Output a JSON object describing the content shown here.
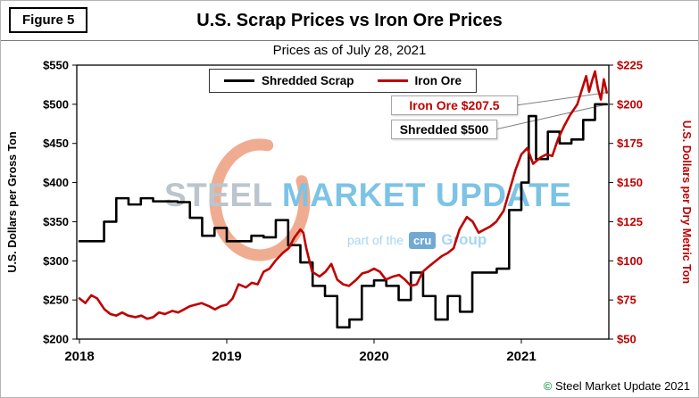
{
  "figure_label": "Figure 5",
  "watermark": {
    "steel": "STEEL",
    "market_update": "MARKET UPDATE",
    "part_of": "part of the",
    "cru": "cru",
    "group": "Group"
  },
  "footer": {
    "copyright_mark": "©",
    "copyright_text": "Steel Market Update 2021"
  },
  "chart_data": {
    "type": "line",
    "title": "U.S. Scrap Prices vs Iron Ore Prices",
    "subtitle": "Prices as of July 28, 2021",
    "grid": false,
    "x_axis": {
      "tick_labels": [
        "2018",
        "2019",
        "2020",
        "2021"
      ],
      "tick_values": [
        2018,
        2019,
        2020,
        2021
      ],
      "range": [
        2018,
        2021.62
      ]
    },
    "y_left": {
      "label": "U.S. Dollars per Gross Ton",
      "color": "#000000",
      "range": [
        200,
        550
      ],
      "tick_values": [
        200,
        250,
        300,
        350,
        400,
        450,
        500,
        550
      ],
      "tick_labels": [
        "$200",
        "$250",
        "$300",
        "$350",
        "$400",
        "$450",
        "$500",
        "$550"
      ]
    },
    "y_right": {
      "label": "U.S. Dollars per Dry Metric Ton",
      "color": "#C00000",
      "range": [
        50,
        225
      ],
      "tick_values": [
        50,
        75,
        100,
        125,
        150,
        175,
        200,
        225
      ],
      "tick_labels": [
        "$50",
        "$75",
        "$100",
        "$125",
        "$150",
        "$175",
        "$200",
        "$225"
      ]
    },
    "legend": {
      "position": "top-center",
      "items": [
        {
          "label": "Shredded Scrap",
          "color": "#000000"
        },
        {
          "label": "Iron Ore",
          "color": "#C00000"
        }
      ]
    },
    "annotations": [
      {
        "text": "Iron Ore $207.5",
        "series": "Iron Ore",
        "value": 207.5,
        "color": "#C00000"
      },
      {
        "text": "Shredded $500",
        "series": "Shredded Scrap",
        "value": 500,
        "color": "#000000"
      }
    ],
    "series": [
      {
        "name": "Shredded Scrap",
        "axis": "left",
        "units": "USD per gross ton",
        "color": "#000000",
        "style": "step",
        "x": [
          2018.0,
          2018.083,
          2018.167,
          2018.25,
          2018.333,
          2018.417,
          2018.5,
          2018.583,
          2018.667,
          2018.75,
          2018.833,
          2018.917,
          2019.0,
          2019.083,
          2019.167,
          2019.25,
          2019.333,
          2019.417,
          2019.5,
          2019.583,
          2019.667,
          2019.75,
          2019.833,
          2019.917,
          2020.0,
          2020.083,
          2020.167,
          2020.25,
          2020.333,
          2020.417,
          2020.5,
          2020.583,
          2020.667,
          2020.75,
          2020.833,
          2020.917,
          2021.0,
          2021.05,
          2021.1,
          2021.18,
          2021.26,
          2021.34,
          2021.42,
          2021.5,
          2021.58
        ],
        "values": [
          325,
          325,
          350,
          380,
          372,
          380,
          376,
          376,
          375,
          355,
          332,
          342,
          325,
          325,
          332,
          330,
          352,
          320,
          298,
          268,
          255,
          215,
          225,
          268,
          275,
          268,
          250,
          285,
          255,
          225,
          255,
          235,
          285,
          285,
          290,
          365,
          400,
          485,
          430,
          465,
          450,
          455,
          480,
          500,
          500
        ]
      },
      {
        "name": "Iron Ore",
        "axis": "right",
        "units": "USD per dry metric ton",
        "color": "#C00000",
        "style": "line",
        "x": [
          2018.0,
          2018.04,
          2018.08,
          2018.12,
          2018.17,
          2018.21,
          2018.25,
          2018.29,
          2018.33,
          2018.38,
          2018.42,
          2018.46,
          2018.5,
          2018.54,
          2018.58,
          2018.63,
          2018.67,
          2018.71,
          2018.75,
          2018.79,
          2018.83,
          2018.88,
          2018.92,
          2018.96,
          2019.0,
          2019.04,
          2019.08,
          2019.13,
          2019.17,
          2019.21,
          2019.25,
          2019.29,
          2019.33,
          2019.38,
          2019.42,
          2019.46,
          2019.5,
          2019.52,
          2019.54,
          2019.58,
          2019.63,
          2019.67,
          2019.71,
          2019.75,
          2019.79,
          2019.83,
          2019.88,
          2019.92,
          2019.96,
          2020.0,
          2020.04,
          2020.08,
          2020.13,
          2020.17,
          2020.21,
          2020.25,
          2020.29,
          2020.33,
          2020.38,
          2020.42,
          2020.46,
          2020.5,
          2020.54,
          2020.58,
          2020.63,
          2020.67,
          2020.71,
          2020.75,
          2020.79,
          2020.83,
          2020.88,
          2020.92,
          2020.96,
          2021.0,
          2021.04,
          2021.08,
          2021.13,
          2021.17,
          2021.21,
          2021.25,
          2021.29,
          2021.33,
          2021.38,
          2021.42,
          2021.44,
          2021.46,
          2021.48,
          2021.5,
          2021.52,
          2021.54,
          2021.56,
          2021.58
        ],
        "values": [
          76,
          73,
          78,
          76,
          69,
          66,
          65,
          67,
          65,
          64,
          65,
          63,
          64,
          67,
          66,
          68,
          67,
          69,
          71,
          72,
          73,
          71,
          69,
          71,
          72,
          76,
          85,
          83,
          86,
          85,
          93,
          95,
          100,
          105,
          108,
          115,
          120,
          118,
          108,
          93,
          90,
          93,
          98,
          88,
          85,
          84,
          88,
          92,
          93,
          95,
          93,
          88,
          90,
          91,
          88,
          84,
          85,
          93,
          97,
          100,
          103,
          105,
          108,
          120,
          128,
          125,
          118,
          120,
          122,
          125,
          132,
          145,
          158,
          168,
          172,
          162,
          166,
          168,
          167,
          178,
          186,
          193,
          200,
          212,
          218,
          208,
          215,
          221,
          210,
          203,
          216,
          207.5
        ]
      }
    ]
  }
}
